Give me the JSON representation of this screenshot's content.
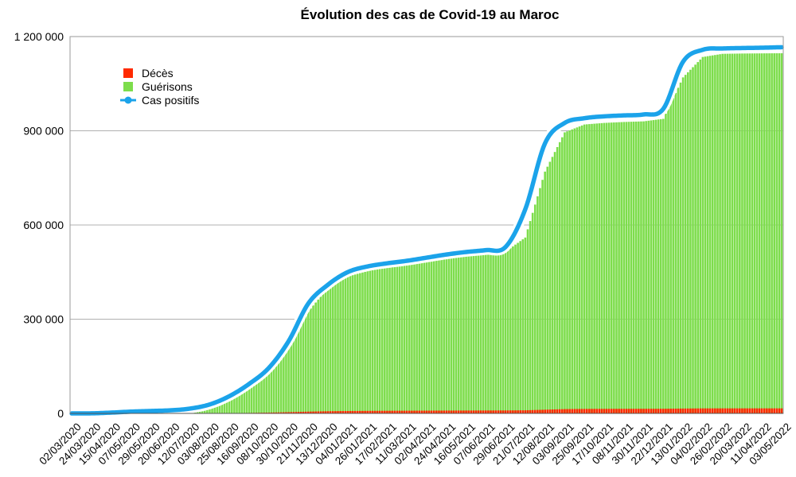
{
  "chart_data": {
    "type": "bar",
    "title": "Évolution des cas de Covid-19 au Maroc",
    "xlabel": "",
    "ylabel": "",
    "ylim": [
      0,
      1200000
    ],
    "y_ticks": [
      {
        "value": 0,
        "label": "0"
      },
      {
        "value": 300000,
        "label": "300 000"
      },
      {
        "value": 600000,
        "label": "600 000"
      },
      {
        "value": 900000,
        "label": "900 000"
      },
      {
        "value": 1200000,
        "label": "1 200 000"
      }
    ],
    "grid": "horizontal",
    "legend_position": "top-left",
    "categories": [
      "02/03/2020",
      "24/03/2020",
      "15/04/2020",
      "07/05/2020",
      "29/05/2020",
      "20/06/2020",
      "12/07/2020",
      "03/08/2020",
      "25/08/2020",
      "16/09/2020",
      "08/10/2020",
      "30/10/2020",
      "21/11/2020",
      "13/12/2020",
      "04/01/2021",
      "26/01/2021",
      "17/02/2021",
      "11/03/2021",
      "02/04/2021",
      "24/04/2021",
      "16/05/2021",
      "07/06/2021",
      "29/06/2021",
      "21/07/2021",
      "12/08/2021",
      "03/09/2021",
      "25/09/2021",
      "17/10/2021",
      "08/11/2021",
      "30/11/2021",
      "22/12/2021",
      "13/01/2022",
      "04/02/2022",
      "26/02/2022",
      "20/03/2022",
      "11/04/2022",
      "03/05/2022"
    ],
    "series": [
      {
        "name": "Décès",
        "kind": "bar",
        "color": "#ff2a00",
        "values": [
          0,
          0,
          100,
          190,
          200,
          230,
          240,
          410,
          880,
          1530,
          2530,
          4020,
          5660,
          6940,
          7620,
          8050,
          8360,
          8600,
          8830,
          9030,
          9190,
          9330,
          9480,
          9900,
          11840,
          13690,
          14290,
          14500,
          14620,
          14720,
          14800,
          15500,
          15980,
          16050,
          16070,
          16070,
          16080
        ]
      },
      {
        "name": "Guérisons",
        "kind": "bar",
        "color": "#7ddd4c",
        "values": [
          0,
          0,
          200,
          3200,
          5800,
          7800,
          9100,
          16500,
          42000,
          83000,
          132000,
          210000,
          325000,
          400000,
          436000,
          453000,
          465000,
          475000,
          485000,
          494000,
          502000,
          507000,
          515000,
          560000,
          770000,
          895000,
          920000,
          925000,
          928000,
          930000,
          938000,
          1070000,
          1135000,
          1145000,
          1146000,
          1146500,
          1147000
        ]
      },
      {
        "name": "Cas positifs",
        "kind": "line",
        "color": "#1ba3ea",
        "values": [
          1,
          170,
          2500,
          5600,
          7700,
          9800,
          15300,
          28500,
          55000,
          94000,
          145000,
          230000,
          350000,
          410000,
          450000,
          468000,
          478000,
          486000,
          496000,
          506000,
          514000,
          520000,
          530000,
          650000,
          860000,
          925000,
          940000,
          946000,
          949000,
          952000,
          970000,
          1120000,
          1158000,
          1162000,
          1163500,
          1164500,
          1166000
        ]
      }
    ]
  }
}
